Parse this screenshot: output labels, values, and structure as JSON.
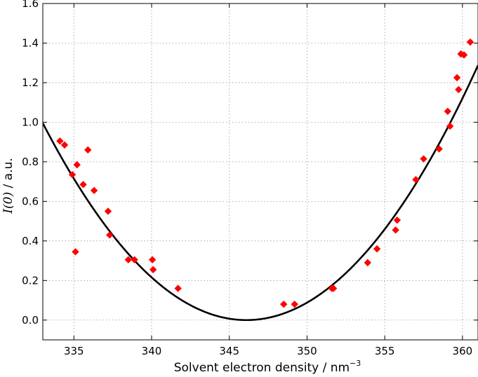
{
  "chart_data": {
    "type": "scatter",
    "title": "",
    "xlabel_text": "Solvent electron density / nm",
    "xlabel_exponent": "−3",
    "ylabel_symbol": "I(0)",
    "ylabel_unit": " / a.u.",
    "xlim": [
      333,
      361
    ],
    "ylim": [
      -0.1,
      1.6
    ],
    "grid": true,
    "x_ticks": [
      335,
      340,
      345,
      350,
      355,
      360
    ],
    "y_ticks": [
      0.0,
      0.2,
      0.4,
      0.6,
      0.8,
      1.0,
      1.2,
      1.4,
      1.6
    ],
    "series": [
      {
        "kind": "points",
        "marker": "diamond",
        "color": "#ff0000",
        "points": [
          [
            334.1,
            0.905
          ],
          [
            334.4,
            0.885
          ],
          [
            334.9,
            0.735
          ],
          [
            335.2,
            0.785
          ],
          [
            335.1,
            0.345
          ],
          [
            335.6,
            0.685
          ],
          [
            335.9,
            0.86
          ],
          [
            336.3,
            0.655
          ],
          [
            337.2,
            0.55
          ],
          [
            337.3,
            0.43
          ],
          [
            338.5,
            0.305
          ],
          [
            338.9,
            0.305
          ],
          [
            340.05,
            0.305
          ],
          [
            340.1,
            0.255
          ],
          [
            341.7,
            0.16
          ],
          [
            348.5,
            0.08
          ],
          [
            349.2,
            0.08
          ],
          [
            351.6,
            0.16
          ],
          [
            351.7,
            0.16
          ],
          [
            353.9,
            0.29
          ],
          [
            354.5,
            0.36
          ],
          [
            355.7,
            0.455
          ],
          [
            355.8,
            0.505
          ],
          [
            357.0,
            0.71
          ],
          [
            357.5,
            0.815
          ],
          [
            358.5,
            0.865
          ],
          [
            359.05,
            1.055
          ],
          [
            359.2,
            0.98
          ],
          [
            359.65,
            1.225
          ],
          [
            359.75,
            1.165
          ],
          [
            359.9,
            1.345
          ],
          [
            360.1,
            1.34
          ],
          [
            360.5,
            1.405
          ]
        ]
      },
      {
        "kind": "fit-curve",
        "color": "#000000",
        "model": "parabola",
        "vertex_x": 346.1,
        "vertex_y": 0.0,
        "coefficient": 0.0058
      }
    ]
  }
}
